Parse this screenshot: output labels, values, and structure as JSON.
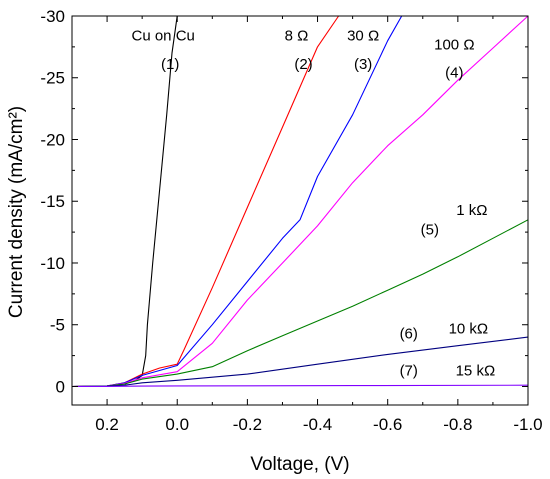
{
  "chart_data": {
    "type": "line",
    "title": "",
    "xlabel": "Voltage, (V)",
    "ylabel": "Current density (mA/cm²)",
    "xlim": [
      0.3,
      -1.0
    ],
    "ylim": [
      1.5,
      -30
    ],
    "x_ticks": [
      0.2,
      0.0,
      -0.2,
      -0.4,
      -0.6,
      -0.8,
      -1.0
    ],
    "x_tick_labels": [
      "0.2",
      "0.0",
      "-0.2",
      "-0.4",
      "-0.6",
      "-0.8",
      "-1.0"
    ],
    "y_ticks": [
      0,
      -5,
      -10,
      -15,
      -20,
      -25,
      -30
    ],
    "y_tick_labels": [
      "0",
      "-5",
      "-10",
      "-15",
      "-20",
      "-25",
      "-30"
    ],
    "grid": false,
    "legend": "none",
    "annotations": [
      {
        "text": "Cu on Cu",
        "x": 0.04,
        "y": -28.0
      },
      {
        "text": "(1)",
        "x": 0.02,
        "y": -25.7
      },
      {
        "text": "8 Ω",
        "x": -0.34,
        "y": -28.0
      },
      {
        "text": "(2)",
        "x": -0.36,
        "y": -25.7
      },
      {
        "text": "30 Ω",
        "x": -0.53,
        "y": -28.0
      },
      {
        "text": "(3)",
        "x": -0.53,
        "y": -25.7
      },
      {
        "text": "100 Ω",
        "x": -0.79,
        "y": -27.3
      },
      {
        "text": "(4)",
        "x": -0.79,
        "y": -25.0
      },
      {
        "text": "1 kΩ",
        "x": -0.84,
        "y": -13.9
      },
      {
        "text": "(5)",
        "x": -0.72,
        "y": -12.3
      },
      {
        "text": "(6)",
        "x": -0.66,
        "y": -3.9
      },
      {
        "text": "10 kΩ",
        "x": -0.83,
        "y": -4.3
      },
      {
        "text": "(7)",
        "x": -0.66,
        "y": -0.9
      },
      {
        "text": "15 kΩ",
        "x": -0.85,
        "y": -0.9
      }
    ],
    "series": [
      {
        "color": "#000000",
        "x": [
          0.3,
          0.2,
          0.15,
          0.12,
          0.1,
          0.09,
          0.085,
          0.07,
          0.05,
          0.03,
          0.015,
          0.0
        ],
        "y": [
          0.0,
          -0.05,
          -0.2,
          -0.5,
          -0.9,
          -2.5,
          -5.0,
          -10.0,
          -16.0,
          -22.0,
          -27.0,
          -30.0
        ]
      },
      {
        "color": "#ff0000",
        "x": [
          0.3,
          0.2,
          0.15,
          0.1,
          0.05,
          0.0,
          -0.02,
          -0.1,
          -0.2,
          -0.3,
          -0.4,
          -0.46
        ],
        "y": [
          0.0,
          -0.05,
          -0.3,
          -1.0,
          -1.5,
          -1.8,
          -3.0,
          -8.0,
          -14.5,
          -21.0,
          -27.5,
          -30.0
        ]
      },
      {
        "color": "#0000ff",
        "x": [
          0.3,
          0.2,
          0.15,
          0.1,
          0.0,
          -0.1,
          -0.2,
          -0.3,
          -0.35,
          -0.4,
          -0.5,
          -0.6,
          -0.64
        ],
        "y": [
          0.0,
          -0.05,
          -0.3,
          -0.9,
          -1.7,
          -5.0,
          -8.5,
          -12.0,
          -13.5,
          -17.0,
          -22.0,
          -28.0,
          -30.0
        ]
      },
      {
        "color": "#ff00ff",
        "x": [
          0.3,
          0.2,
          0.15,
          0.1,
          0.0,
          -0.1,
          -0.2,
          -0.3,
          -0.4,
          -0.5,
          -0.6,
          -0.7,
          -0.8,
          -0.9,
          -1.0
        ],
        "y": [
          0.0,
          -0.05,
          -0.25,
          -0.7,
          -1.2,
          -3.5,
          -7.0,
          -10.0,
          -13.0,
          -16.5,
          -19.5,
          -22.0,
          -24.8,
          -27.4,
          -30.0
        ]
      },
      {
        "color": "#008000",
        "x": [
          0.3,
          0.2,
          0.15,
          0.1,
          0.0,
          -0.1,
          -0.2,
          -0.3,
          -0.4,
          -0.5,
          -0.6,
          -0.7,
          -0.8,
          -0.9,
          -1.0
        ],
        "y": [
          0.0,
          -0.05,
          -0.2,
          -0.6,
          -1.0,
          -1.6,
          -2.9,
          -4.1,
          -5.3,
          -6.5,
          -7.8,
          -9.1,
          -10.5,
          -12.0,
          -13.5
        ]
      },
      {
        "color": "#000080",
        "x": [
          0.3,
          0.2,
          0.15,
          0.1,
          0.0,
          -0.2,
          -0.4,
          -0.6,
          -0.8,
          -1.0
        ],
        "y": [
          0.0,
          -0.03,
          -0.1,
          -0.3,
          -0.5,
          -1.0,
          -1.8,
          -2.6,
          -3.3,
          -4.0
        ]
      },
      {
        "color": "#8000ff",
        "x": [
          0.3,
          0.2,
          0.1,
          0.0,
          -0.5,
          -1.0
        ],
        "y": [
          0.0,
          -0.01,
          -0.03,
          -0.05,
          -0.07,
          -0.1
        ]
      }
    ]
  }
}
